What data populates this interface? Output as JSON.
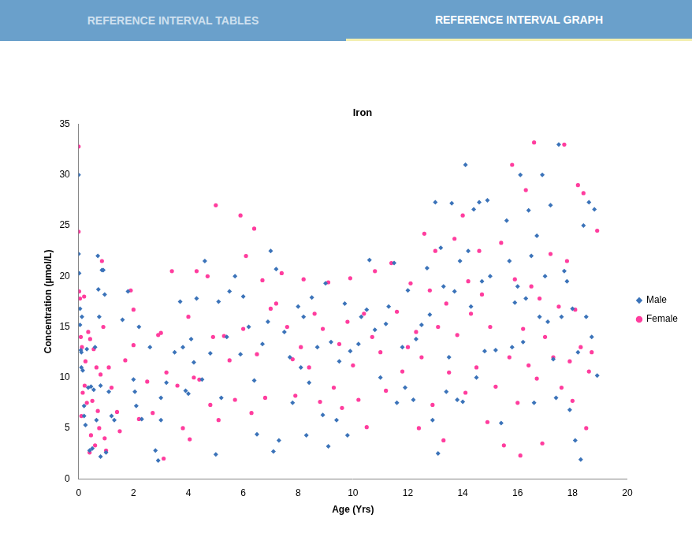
{
  "header": {
    "tabs": [
      {
        "label": "REFERENCE INTERVAL TABLES",
        "selected": false
      },
      {
        "label": "REFERENCE INTERVAL GRAPH",
        "selected": true
      }
    ]
  },
  "chart_data": {
    "type": "scatter",
    "title": "Iron",
    "x_label": "Age (Yrs)",
    "y_label": "Concentration (µmol/L)",
    "xlim": [
      0,
      20
    ],
    "xticks": [
      0,
      2,
      4,
      6,
      8,
      10,
      12,
      14,
      16,
      18,
      20
    ],
    "ylim": [
      0,
      35
    ],
    "yticks": [
      0,
      5,
      10,
      15,
      20,
      25,
      30,
      35
    ],
    "grid": false,
    "legend": "right",
    "series": [
      {
        "name": "Male",
        "color": "#3b73b9",
        "marker": "diamond",
        "x": [
          0,
          0,
          0.02,
          0.05,
          0.05,
          0.08,
          0.1,
          0.1,
          0.12,
          0.15,
          0.2,
          0.2,
          0.25,
          0.3,
          0.35,
          0.4,
          0.45,
          0.5,
          0.55,
          0.6,
          0.65,
          0.7,
          0.72,
          0.75,
          0.8,
          0.8,
          0.85,
          0.9,
          0.95,
          1.0,
          1.1,
          1.2,
          1.3,
          1.6,
          1.8,
          2.0,
          2.05,
          2.1,
          2.2,
          2.3,
          2.6,
          2.8,
          2.9,
          3.0,
          3.0,
          3.2,
          3.5,
          3.7,
          3.8,
          3.9,
          4.0,
          4.1,
          4.2,
          4.3,
          4.5,
          4.6,
          4.8,
          5.0,
          5.1,
          5.2,
          5.4,
          5.5,
          5.7,
          5.9,
          6.0,
          6.2,
          6.4,
          6.5,
          6.7,
          6.9,
          7.0,
          7.1,
          7.2,
          7.3,
          7.5,
          7.7,
          7.8,
          8.0,
          8.1,
          8.2,
          8.3,
          8.4,
          8.5,
          8.7,
          8.9,
          9.0,
          9.1,
          9.2,
          9.4,
          9.5,
          9.7,
          9.8,
          9.9,
          10.2,
          10.3,
          10.5,
          10.6,
          10.8,
          11.0,
          11.2,
          11.3,
          11.5,
          11.6,
          11.8,
          11.9,
          12.0,
          12.2,
          12.3,
          12.5,
          12.7,
          12.8,
          12.9,
          13.0,
          13.1,
          13.2,
          13.3,
          13.4,
          13.5,
          13.6,
          13.7,
          13.8,
          13.9,
          14.0,
          14.1,
          14.2,
          14.3,
          14.4,
          14.5,
          14.6,
          14.7,
          14.8,
          14.9,
          15.0,
          15.2,
          15.4,
          15.6,
          15.7,
          15.8,
          15.9,
          16.0,
          16.1,
          16.2,
          16.3,
          16.4,
          16.5,
          16.6,
          16.7,
          16.8,
          16.9,
          17.0,
          17.1,
          17.2,
          17.3,
          17.4,
          17.5,
          17.6,
          17.7,
          17.8,
          17.9,
          18.0,
          18.1,
          18.2,
          18.3,
          18.4,
          18.5,
          18.6,
          18.7,
          18.8,
          18.9
        ],
        "values": [
          30,
          22.2,
          20.3,
          16.8,
          15.2,
          12.7,
          12.5,
          11,
          16,
          10.7,
          7.2,
          6.2,
          5.3,
          12.8,
          9,
          2.8,
          9.1,
          3,
          8.8,
          13,
          5.8,
          22,
          18.7,
          16,
          2.2,
          9.2,
          20.6,
          20.6,
          18.2,
          2.6,
          8.6,
          6.2,
          5.8,
          15.7,
          18.5,
          9.8,
          8.6,
          7.2,
          15,
          5.9,
          13,
          2.8,
          1.8,
          5.8,
          8,
          9.5,
          12.5,
          17.5,
          13,
          8.7,
          8.4,
          13.8,
          11.5,
          17.8,
          9.8,
          21.5,
          12.4,
          2.4,
          17.5,
          8,
          14,
          18.5,
          20,
          12.3,
          18,
          15,
          9.7,
          4.4,
          13.3,
          15.5,
          22.5,
          2.7,
          20.7,
          3.8,
          14.5,
          12,
          7.5,
          17,
          11,
          16,
          4.3,
          9.5,
          17.9,
          13,
          6.3,
          19.3,
          3.2,
          13.5,
          5.8,
          11.6,
          17.3,
          4.3,
          12.6,
          13.3,
          16,
          16.7,
          21.6,
          14.7,
          10,
          15.3,
          17,
          21.3,
          7.5,
          13,
          9,
          18.6,
          7.8,
          13.8,
          15.2,
          20.8,
          16.2,
          5.8,
          27.3,
          2.5,
          22.8,
          19,
          8.6,
          12,
          27.2,
          18.5,
          7.8,
          21.5,
          7.6,
          31,
          22.5,
          17,
          26.6,
          10,
          27.3,
          19.5,
          12.6,
          27.5,
          20,
          12.7,
          5.5,
          25.5,
          21.5,
          13,
          17.4,
          19,
          30,
          13.5,
          17.8,
          26.5,
          22,
          7.5,
          24,
          16,
          30,
          20,
          15.5,
          27,
          11.8,
          8,
          33,
          16,
          20.5,
          19.5,
          6.8,
          16.8,
          3.8,
          12.5,
          1.9,
          25,
          16,
          27.3,
          14,
          26.6,
          10.2
        ]
      },
      {
        "name": "Female",
        "color": "#ff3d9e",
        "marker": "circle",
        "x": [
          0,
          0,
          0.02,
          0.05,
          0.08,
          0.1,
          0.12,
          0.15,
          0.2,
          0.22,
          0.25,
          0.3,
          0.35,
          0.4,
          0.42,
          0.45,
          0.5,
          0.55,
          0.6,
          0.65,
          0.7,
          0.75,
          0.8,
          0.85,
          0.9,
          0.95,
          1.0,
          1.1,
          1.2,
          1.4,
          1.5,
          1.7,
          1.9,
          2.0,
          2.0,
          2.2,
          2.5,
          2.7,
          2.9,
          3.0,
          3.1,
          3.2,
          3.4,
          3.6,
          3.8,
          4.0,
          4.05,
          4.2,
          4.3,
          4.4,
          4.7,
          4.8,
          4.9,
          5.0,
          5.1,
          5.3,
          5.5,
          5.7,
          5.9,
          6.0,
          6.1,
          6.3,
          6.4,
          6.5,
          6.7,
          6.8,
          7.0,
          7.2,
          7.4,
          7.6,
          7.8,
          7.9,
          8.1,
          8.2,
          8.4,
          8.6,
          8.8,
          8.9,
          9.1,
          9.3,
          9.5,
          9.6,
          9.8,
          9.9,
          10.0,
          10.2,
          10.4,
          10.5,
          10.7,
          10.8,
          11.0,
          11.2,
          11.4,
          11.6,
          11.8,
          12.0,
          12.1,
          12.3,
          12.4,
          12.5,
          12.6,
          12.8,
          12.9,
          13.0,
          13.1,
          13.3,
          13.4,
          13.5,
          13.7,
          13.8,
          14.0,
          14.1,
          14.2,
          14.3,
          14.5,
          14.6,
          14.7,
          14.9,
          15.0,
          15.2,
          15.4,
          15.5,
          15.7,
          15.8,
          15.9,
          16.0,
          16.1,
          16.2,
          16.3,
          16.4,
          16.5,
          16.6,
          16.7,
          16.8,
          16.9,
          17.0,
          17.2,
          17.3,
          17.5,
          17.6,
          17.7,
          17.8,
          17.9,
          18.0,
          18.1,
          18.2,
          18.3,
          18.4,
          18.5,
          18.6,
          18.7,
          18.9
        ],
        "values": [
          32.8,
          24.4,
          18.5,
          17.8,
          14,
          6.2,
          13,
          8.5,
          18,
          9.2,
          11.6,
          7.5,
          14.5,
          2.6,
          13.8,
          4.3,
          7.7,
          12.8,
          3.3,
          11,
          6.7,
          5,
          10.3,
          21.5,
          15,
          4,
          2.8,
          11,
          9,
          6.6,
          4.7,
          11.7,
          18.6,
          16.7,
          13.2,
          5.9,
          9.6,
          6.5,
          14.2,
          14.4,
          2,
          10.5,
          20.5,
          9.2,
          5,
          16,
          3.9,
          10,
          20.5,
          9.8,
          20,
          7.3,
          14,
          27,
          5.8,
          14.1,
          11.7,
          7.8,
          26,
          14.8,
          22,
          6.5,
          24.7,
          12.3,
          19.6,
          8,
          16.8,
          17.3,
          20.3,
          15,
          11.8,
          8.2,
          13,
          19.7,
          11,
          16.3,
          7.6,
          14.8,
          19.4,
          9,
          13.3,
          7,
          15.5,
          19.8,
          11.2,
          7.8,
          16.3,
          5.1,
          14,
          20.5,
          12.5,
          8.7,
          21.3,
          16.5,
          10.6,
          13,
          19.3,
          14.5,
          5,
          12,
          24.2,
          18.6,
          7.3,
          22.5,
          15,
          3.8,
          17.3,
          10.5,
          23.7,
          14.2,
          26,
          8.5,
          19.5,
          16.3,
          11,
          22.5,
          18.2,
          5.6,
          15,
          9.1,
          23.3,
          3.3,
          12,
          31,
          19.7,
          7.5,
          2.3,
          14.8,
          28.5,
          11.2,
          19,
          33.2,
          9.9,
          17.8,
          3.5,
          14,
          22.2,
          12,
          17,
          9,
          33,
          21.5,
          11.6,
          7.7,
          16.7,
          29,
          13,
          28.2,
          5,
          10.6,
          12.5,
          24.5
        ]
      }
    ]
  }
}
